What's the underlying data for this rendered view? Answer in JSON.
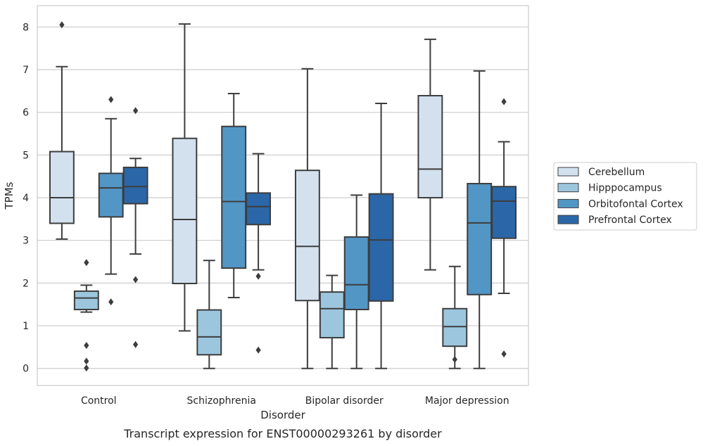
{
  "chart_data": {
    "type": "boxplot",
    "xlabel": "Disorder",
    "ylabel": "TPMs",
    "caption": "Transcript expression for ENST00000293261 by disorder",
    "ylim": [
      -0.4,
      8.5
    ],
    "yticks": [
      "0",
      "1",
      "2",
      "3",
      "4",
      "5",
      "6",
      "7",
      "8"
    ],
    "grid": "horizontal",
    "legend_position": "right",
    "categories": [
      "Control",
      "Schizophrenia",
      "Bipolar disorder",
      "Major depression"
    ],
    "series": [
      {
        "name": "Cerebellum",
        "color": "#d3e1ef",
        "boxes": [
          {
            "whislo": 3.03,
            "q1": 3.4,
            "med": 4.0,
            "q3": 5.08,
            "whishi": 7.07,
            "fliers": [
              8.05
            ]
          },
          {
            "whislo": 0.88,
            "q1": 1.99,
            "med": 3.49,
            "q3": 5.39,
            "whishi": 8.07,
            "fliers": []
          },
          {
            "whislo": 0.0,
            "q1": 1.59,
            "med": 2.86,
            "q3": 4.64,
            "whishi": 7.02,
            "fliers": []
          },
          {
            "whislo": 2.31,
            "q1": 4.0,
            "med": 4.67,
            "q3": 6.39,
            "whishi": 7.71,
            "fliers": []
          }
        ]
      },
      {
        "name": "Hipppocampus",
        "color": "#9cc6de",
        "boxes": [
          {
            "whislo": 1.32,
            "q1": 1.38,
            "med": 1.65,
            "q3": 1.81,
            "whishi": 1.95,
            "fliers": [
              2.48,
              0.54,
              0.17,
              0.01
            ]
          },
          {
            "whislo": 0.0,
            "q1": 0.32,
            "med": 0.74,
            "q3": 1.37,
            "whishi": 2.53,
            "fliers": []
          },
          {
            "whislo": 0.0,
            "q1": 0.72,
            "med": 1.4,
            "q3": 1.79,
            "whishi": 2.18,
            "fliers": []
          },
          {
            "whislo": 0.0,
            "q1": 0.52,
            "med": 0.98,
            "q3": 1.4,
            "whishi": 2.39,
            "fliers": [
              0.21
            ]
          }
        ]
      },
      {
        "name": "Orbitofontal Cortex",
        "color": "#5296c6",
        "boxes": [
          {
            "whislo": 2.21,
            "q1": 3.55,
            "med": 4.23,
            "q3": 4.57,
            "whishi": 5.85,
            "fliers": [
              6.3,
              1.56
            ]
          },
          {
            "whislo": 1.66,
            "q1": 2.35,
            "med": 3.91,
            "q3": 5.67,
            "whishi": 6.44,
            "fliers": []
          },
          {
            "whislo": 0.0,
            "q1": 1.38,
            "med": 1.96,
            "q3": 3.08,
            "whishi": 4.06,
            "fliers": []
          },
          {
            "whislo": 0.0,
            "q1": 1.73,
            "med": 3.41,
            "q3": 4.33,
            "whishi": 6.97,
            "fliers": []
          }
        ]
      },
      {
        "name": "Prefrontal Cortex",
        "color": "#2b67a8",
        "boxes": [
          {
            "whislo": 2.68,
            "q1": 3.86,
            "med": 4.26,
            "q3": 4.71,
            "whishi": 4.92,
            "fliers": [
              6.04,
              2.08,
              0.56
            ]
          },
          {
            "whislo": 2.31,
            "q1": 3.37,
            "med": 3.79,
            "q3": 4.11,
            "whishi": 5.03,
            "fliers": [
              2.16,
              0.43
            ]
          },
          {
            "whislo": 0.0,
            "q1": 1.58,
            "med": 3.01,
            "q3": 4.09,
            "whishi": 6.21,
            "fliers": []
          },
          {
            "whislo": 1.76,
            "q1": 3.05,
            "med": 3.92,
            "q3": 4.26,
            "whishi": 5.31,
            "fliers": [
              6.25,
              0.34
            ]
          }
        ]
      }
    ]
  }
}
